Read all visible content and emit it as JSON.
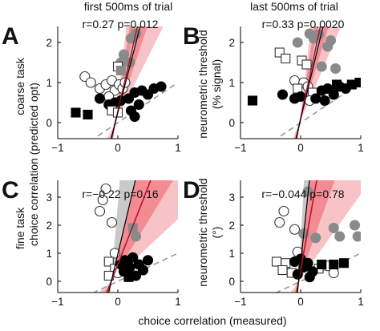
{
  "figure": {
    "col_headers": [
      "first 500ms of trial",
      "last 500ms of trial"
    ],
    "left_row_labels": [
      "coarse task",
      "fine task"
    ],
    "left_axis_label": "choice correlation (predicted opt)",
    "right_axis_labels_top": [
      "neurometric threshold",
      "(% signal)"
    ],
    "right_axis_labels_bottom": [
      "neurometric threshold",
      "(°)"
    ],
    "x_axis_label": "choice correlation (measured)"
  },
  "chart_data": [
    {
      "panel": "A",
      "type": "scatter",
      "stat_text": "r=0.27  p=0.012",
      "xlim": [
        -1,
        1
      ],
      "ylim": [
        -0.4,
        2.4
      ],
      "xticks": [
        -1,
        0,
        1
      ],
      "yticks": [
        0,
        1,
        2
      ],
      "xtick_labels": [
        "−1",
        "0",
        "1"
      ],
      "ytick_labels": [
        "0",
        "1",
        "2"
      ],
      "identity_line": true,
      "regression": {
        "slope": 6.5,
        "intercept": 0.28,
        "band": [
          3.0,
          13.0
        ],
        "dark_band": [
          4.5,
          10.0
        ],
        "gray_band": [
          5.8,
          7.5
        ]
      },
      "points": [
        {
          "x": 0.22,
          "y": 2.1,
          "m": "circle",
          "f": "gray"
        },
        {
          "x": 0.3,
          "y": 2.22,
          "m": "circle",
          "f": "gray"
        },
        {
          "x": 0.1,
          "y": 1.7,
          "m": "circle",
          "f": "gray"
        },
        {
          "x": 0.2,
          "y": 1.5,
          "m": "circle",
          "f": "gray"
        },
        {
          "x": 0.05,
          "y": 1.5,
          "m": "circle",
          "f": "gray"
        },
        {
          "x": 0.0,
          "y": 1.4,
          "m": "square",
          "f": "white"
        },
        {
          "x": 0.05,
          "y": 1.3,
          "m": "square",
          "f": "gray"
        },
        {
          "x": -0.55,
          "y": 1.15,
          "m": "circle",
          "f": "white"
        },
        {
          "x": -0.45,
          "y": 1.0,
          "m": "circle",
          "f": "white"
        },
        {
          "x": -0.3,
          "y": 0.85,
          "m": "circle",
          "f": "white"
        },
        {
          "x": -0.2,
          "y": 0.95,
          "m": "circle",
          "f": "white"
        },
        {
          "x": -0.1,
          "y": 1.05,
          "m": "circle",
          "f": "white"
        },
        {
          "x": -0.05,
          "y": 0.8,
          "m": "circle",
          "f": "white"
        },
        {
          "x": 0.02,
          "y": 0.95,
          "m": "circle",
          "f": "white"
        },
        {
          "x": 0.08,
          "y": 0.85,
          "m": "circle",
          "f": "white"
        },
        {
          "x": 0.12,
          "y": 1.0,
          "m": "circle",
          "f": "white"
        },
        {
          "x": -0.15,
          "y": 0.65,
          "m": "circle",
          "f": "white"
        },
        {
          "x": -0.3,
          "y": 0.6,
          "m": "circle",
          "f": "black"
        },
        {
          "x": -0.15,
          "y": 0.45,
          "m": "circle",
          "f": "black"
        },
        {
          "x": -0.05,
          "y": 0.5,
          "m": "circle",
          "f": "black"
        },
        {
          "x": 0.05,
          "y": 0.55,
          "m": "circle",
          "f": "black"
        },
        {
          "x": 0.18,
          "y": 0.6,
          "m": "circle",
          "f": "black"
        },
        {
          "x": 0.28,
          "y": 0.75,
          "m": "circle",
          "f": "black"
        },
        {
          "x": 0.4,
          "y": 0.8,
          "m": "circle",
          "f": "black"
        },
        {
          "x": 0.5,
          "y": 0.7,
          "m": "circle",
          "f": "black"
        },
        {
          "x": 0.6,
          "y": 0.85,
          "m": "circle",
          "f": "black"
        },
        {
          "x": 0.72,
          "y": 0.9,
          "m": "circle",
          "f": "black"
        },
        {
          "x": 0.35,
          "y": 0.45,
          "m": "circle",
          "f": "black"
        },
        {
          "x": 0.22,
          "y": 0.3,
          "m": "circle",
          "f": "black"
        },
        {
          "x": 0.28,
          "y": 0.15,
          "m": "circle",
          "f": "black"
        },
        {
          "x": -0.7,
          "y": 0.25,
          "m": "square",
          "f": "black"
        },
        {
          "x": -0.5,
          "y": 0.2,
          "m": "square",
          "f": "black"
        },
        {
          "x": -0.1,
          "y": 0.3,
          "m": "square",
          "f": "white"
        },
        {
          "x": 0.0,
          "y": 0.25,
          "m": "square",
          "f": "white"
        }
      ]
    },
    {
      "panel": "B",
      "type": "scatter",
      "stat_text": "r=0.33  p=0.0020",
      "xlim": [
        -1,
        1
      ],
      "ylim": [
        -0.4,
        2.4
      ],
      "xticks": [
        -1,
        0,
        1
      ],
      "yticks": [
        0,
        1,
        2
      ],
      "xtick_labels": [
        "−1",
        "0",
        "1"
      ],
      "ytick_labels": [
        "0",
        "1",
        "2"
      ],
      "identity_line": true,
      "regression": {
        "slope": 7.0,
        "intercept": 0.1,
        "band": [
          3.5,
          13.0
        ],
        "dark_band": [
          5.0,
          10.0
        ],
        "gray_band": [
          6.2,
          8.0
        ]
      },
      "points": [
        {
          "x": 0.15,
          "y": 2.22,
          "m": "circle",
          "f": "gray"
        },
        {
          "x": 0.22,
          "y": 2.1,
          "m": "circle",
          "f": "gray"
        },
        {
          "x": 0.3,
          "y": 2.2,
          "m": "circle",
          "f": "gray"
        },
        {
          "x": -0.05,
          "y": 2.0,
          "m": "circle",
          "f": "gray"
        },
        {
          "x": 0.45,
          "y": 1.9,
          "m": "circle",
          "f": "gray"
        },
        {
          "x": 0.5,
          "y": 2.05,
          "m": "circle",
          "f": "gray"
        },
        {
          "x": -0.35,
          "y": 1.75,
          "m": "square",
          "f": "white"
        },
        {
          "x": -0.25,
          "y": 1.6,
          "m": "square",
          "f": "white"
        },
        {
          "x": 0.02,
          "y": 1.55,
          "m": "square",
          "f": "white"
        },
        {
          "x": 0.1,
          "y": 1.45,
          "m": "square",
          "f": "white"
        },
        {
          "x": 0.35,
          "y": 1.4,
          "m": "circle",
          "f": "gray"
        },
        {
          "x": 0.58,
          "y": 1.35,
          "m": "circle",
          "f": "gray"
        },
        {
          "x": -0.1,
          "y": 1.05,
          "m": "circle",
          "f": "white"
        },
        {
          "x": 0.05,
          "y": 1.0,
          "m": "circle",
          "f": "white"
        },
        {
          "x": 0.12,
          "y": 0.9,
          "m": "circle",
          "f": "white"
        },
        {
          "x": -0.05,
          "y": 0.85,
          "m": "square",
          "f": "white"
        },
        {
          "x": 0.2,
          "y": 0.75,
          "m": "square",
          "f": "white"
        },
        {
          "x": 0.15,
          "y": 0.55,
          "m": "circle",
          "f": "white"
        },
        {
          "x": -0.3,
          "y": 0.7,
          "m": "circle",
          "f": "black"
        },
        {
          "x": -0.1,
          "y": 0.6,
          "m": "circle",
          "f": "black"
        },
        {
          "x": 0.0,
          "y": 0.65,
          "m": "circle",
          "f": "black"
        },
        {
          "x": 0.25,
          "y": 0.6,
          "m": "circle",
          "f": "black"
        },
        {
          "x": 0.35,
          "y": 0.8,
          "m": "circle",
          "f": "black"
        },
        {
          "x": 0.45,
          "y": 0.85,
          "m": "circle",
          "f": "black"
        },
        {
          "x": 0.55,
          "y": 0.7,
          "m": "circle",
          "f": "black"
        },
        {
          "x": 0.65,
          "y": 0.9,
          "m": "circle",
          "f": "black"
        },
        {
          "x": 0.75,
          "y": 0.85,
          "m": "circle",
          "f": "black"
        },
        {
          "x": 0.4,
          "y": 0.55,
          "m": "circle",
          "f": "black"
        },
        {
          "x": -0.8,
          "y": 0.55,
          "m": "square",
          "f": "black"
        },
        {
          "x": 0.85,
          "y": 0.95,
          "m": "square",
          "f": "black"
        },
        {
          "x": 0.98,
          "y": 1.0,
          "m": "square",
          "f": "black"
        },
        {
          "x": 0.6,
          "y": 0.95,
          "m": "square",
          "f": "black"
        }
      ]
    },
    {
      "panel": "C",
      "type": "scatter",
      "stat_text": "r=−0.22  p=0.16",
      "xlim": [
        -1,
        1
      ],
      "ylim": [
        -0.4,
        3.6
      ],
      "xticks": [
        -1,
        0,
        1
      ],
      "yticks": [
        0,
        1,
        2,
        3
      ],
      "xtick_labels": [
        "−1",
        "0",
        "1"
      ],
      "ytick_labels": [
        "0",
        "1",
        "2",
        "3"
      ],
      "identity_line": true,
      "regression": {
        "slope": 5.5,
        "intercept": 0.6,
        "band": [
          2.0,
          25.0
        ],
        "dark_band": [
          3.5,
          12.0
        ],
        "gray_band": [
          9.0,
          25.0
        ]
      },
      "points": [
        {
          "x": -0.2,
          "y": 3.3,
          "m": "circle",
          "f": "white"
        },
        {
          "x": -0.25,
          "y": 2.9,
          "m": "circle",
          "f": "white"
        },
        {
          "x": -0.3,
          "y": 2.5,
          "m": "circle",
          "f": "white"
        },
        {
          "x": -0.1,
          "y": 2.1,
          "m": "circle",
          "f": "white"
        },
        {
          "x": 0.25,
          "y": 1.9,
          "m": "square",
          "f": "gray"
        },
        {
          "x": 0.3,
          "y": 1.6,
          "m": "circle",
          "f": "gray"
        },
        {
          "x": -0.05,
          "y": 1.0,
          "m": "circle",
          "f": "white"
        },
        {
          "x": -0.15,
          "y": 0.7,
          "m": "square",
          "f": "white"
        },
        {
          "x": -0.05,
          "y": 0.45,
          "m": "square",
          "f": "white"
        },
        {
          "x": -0.15,
          "y": 0.2,
          "m": "square",
          "f": "white"
        },
        {
          "x": 0.0,
          "y": 0.3,
          "m": "circle",
          "f": "white"
        },
        {
          "x": 0.05,
          "y": 0.6,
          "m": "circle",
          "f": "black"
        },
        {
          "x": 0.12,
          "y": 0.75,
          "m": "circle",
          "f": "black"
        },
        {
          "x": 0.2,
          "y": 0.5,
          "m": "circle",
          "f": "black"
        },
        {
          "x": 0.25,
          "y": 0.85,
          "m": "circle",
          "f": "black"
        },
        {
          "x": 0.35,
          "y": 0.6,
          "m": "circle",
          "f": "black"
        },
        {
          "x": 0.42,
          "y": 0.4,
          "m": "circle",
          "f": "black"
        },
        {
          "x": 0.5,
          "y": 0.75,
          "m": "circle",
          "f": "black"
        },
        {
          "x": 0.1,
          "y": 0.35,
          "m": "circle",
          "f": "black"
        },
        {
          "x": 0.3,
          "y": 0.2,
          "m": "circle",
          "f": "black"
        },
        {
          "x": 0.18,
          "y": 0.15,
          "m": "square",
          "f": "black"
        }
      ]
    },
    {
      "panel": "D",
      "type": "scatter",
      "stat_text": "r=−0.044  p=0.78",
      "xlim": [
        -1,
        1
      ],
      "ylim": [
        -0.4,
        3.6
      ],
      "xticks": [
        -1,
        0,
        1
      ],
      "yticks": [
        0,
        1,
        2,
        3
      ],
      "xtick_labels": [
        "−1",
        "0",
        "1"
      ],
      "ytick_labels": [
        "0",
        "1",
        "2",
        "3"
      ],
      "identity_line": true,
      "regression": {
        "slope": 12.0,
        "intercept": 0.4,
        "band": [
          3.0,
          40.0
        ],
        "dark_band": [
          6.0,
          25.0
        ],
        "gray_band": [
          20.0,
          40.0
        ]
      },
      "points": [
        {
          "x": 0.12,
          "y": 3.2,
          "m": "circle",
          "f": "gray"
        },
        {
          "x": -0.28,
          "y": 2.5,
          "m": "circle",
          "f": "white"
        },
        {
          "x": -0.35,
          "y": 2.1,
          "m": "circle",
          "f": "white"
        },
        {
          "x": -0.1,
          "y": 1.85,
          "m": "circle",
          "f": "white"
        },
        {
          "x": 0.05,
          "y": 1.7,
          "m": "circle",
          "f": "gray"
        },
        {
          "x": 0.25,
          "y": 1.55,
          "m": "circle",
          "f": "gray"
        },
        {
          "x": 0.55,
          "y": 1.9,
          "m": "circle",
          "f": "gray"
        },
        {
          "x": 0.65,
          "y": 1.6,
          "m": "circle",
          "f": "gray"
        },
        {
          "x": 0.9,
          "y": 2.0,
          "m": "circle",
          "f": "gray"
        },
        {
          "x": 0.95,
          "y": 1.6,
          "m": "circle",
          "f": "gray"
        },
        {
          "x": -0.05,
          "y": 1.05,
          "m": "circle",
          "f": "white"
        },
        {
          "x": -0.4,
          "y": 0.7,
          "m": "square",
          "f": "white"
        },
        {
          "x": -0.25,
          "y": 0.65,
          "m": "square",
          "f": "white"
        },
        {
          "x": -0.3,
          "y": 0.4,
          "m": "square",
          "f": "white"
        },
        {
          "x": -0.15,
          "y": 0.3,
          "m": "square",
          "f": "white"
        },
        {
          "x": 0.3,
          "y": 0.45,
          "m": "square",
          "f": "white"
        },
        {
          "x": 0.45,
          "y": 0.55,
          "m": "circle",
          "f": "white"
        },
        {
          "x": 0.55,
          "y": 0.3,
          "m": "circle",
          "f": "white"
        },
        {
          "x": -0.1,
          "y": 0.7,
          "m": "circle",
          "f": "black"
        },
        {
          "x": 0.0,
          "y": 0.8,
          "m": "circle",
          "f": "black"
        },
        {
          "x": 0.05,
          "y": 0.5,
          "m": "circle",
          "f": "black"
        },
        {
          "x": 0.12,
          "y": 0.65,
          "m": "circle",
          "f": "black"
        },
        {
          "x": 0.2,
          "y": 0.35,
          "m": "circle",
          "f": "black"
        },
        {
          "x": -0.05,
          "y": 0.25,
          "m": "circle",
          "f": "black"
        },
        {
          "x": 0.15,
          "y": 0.15,
          "m": "circle",
          "f": "black"
        },
        {
          "x": 0.35,
          "y": 0.6,
          "m": "square",
          "f": "black"
        },
        {
          "x": 0.55,
          "y": 0.6,
          "m": "square",
          "f": "black"
        },
        {
          "x": 0.72,
          "y": 0.65,
          "m": "square",
          "f": "black"
        }
      ]
    }
  ],
  "colors": {
    "band_light": "#f8c3c6",
    "band_dark": "#f28b92",
    "band_gray": "#c9c9c9",
    "regression": "#b2182b",
    "identity": "#999999",
    "gray_marker": "#8a8a8a"
  }
}
